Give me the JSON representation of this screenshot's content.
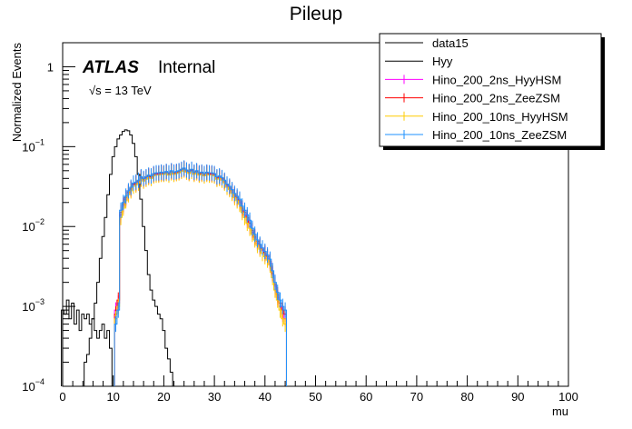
{
  "chart_data": {
    "type": "line",
    "title": "Pileup",
    "xlabel": "mu",
    "ylabel": "Normalized Events",
    "xlim": [
      0,
      100
    ],
    "ylim": [
      0.0001,
      2
    ],
    "y_scale": "log",
    "x_ticks": [
      "0",
      "10",
      "20",
      "30",
      "40",
      "50",
      "60",
      "70",
      "80",
      "90",
      "100"
    ],
    "y_ticks": [
      {
        "value": 1,
        "base": "1",
        "exp": ""
      },
      {
        "value": 0.1,
        "base": "10",
        "exp": "−1"
      },
      {
        "value": 0.01,
        "base": "10",
        "exp": "−2"
      },
      {
        "value": 0.001,
        "base": "10",
        "exp": "−3"
      },
      {
        "value": 0.0001,
        "base": "10",
        "exp": "−4"
      }
    ],
    "grid": false,
    "legend_position": "top-right",
    "atlas_label": "ATLAS",
    "atlas_status": "Internal",
    "energy_label": "√s = 13 TeV",
    "series": [
      {
        "name": "data15",
        "color": "#000000",
        "x": [
          4.5,
          5,
          5.5,
          6,
          6.5,
          7,
          7.5,
          8,
          8.5,
          9,
          9.5,
          10,
          10.5,
          11,
          11.5,
          12,
          12.5,
          13,
          13.5,
          14,
          14.5,
          15,
          15.5,
          16,
          16.5,
          17,
          17.5,
          18,
          18.5,
          19,
          19.5,
          20,
          20.5,
          21,
          21.5
        ],
        "y": [
          0.0002,
          0.00025,
          0.0004,
          0.0007,
          0.0011,
          0.002,
          0.004,
          0.0075,
          0.013,
          0.025,
          0.045,
          0.075,
          0.1,
          0.125,
          0.14,
          0.155,
          0.162,
          0.158,
          0.14,
          0.11,
          0.075,
          0.045,
          0.022,
          0.01,
          0.005,
          0.0025,
          0.0016,
          0.0012,
          0.001,
          0.0008,
          0.0007,
          0.0005,
          0.0003,
          0.00022,
          0.00015
        ]
      },
      {
        "name": "Hyy",
        "color": "#000000",
        "x": [
          0,
          0.5,
          1,
          1.5,
          2,
          2.5,
          3,
          3.5,
          4,
          4.5,
          5,
          5.5,
          6,
          6.5,
          7,
          7.5,
          8,
          8.5,
          9,
          9.5
        ],
        "y": [
          0.0009,
          0.0008,
          0.0012,
          0.0007,
          0.0011,
          0.0006,
          0.0009,
          0.0005,
          0.0008,
          0.0007,
          0.0008,
          0.0006,
          0.0007,
          0.0005,
          0.0004,
          0.0005,
          0.0006,
          0.0004,
          0.0005,
          0.0003
        ]
      },
      {
        "name": "Hino_200_2ns_HyyHSM",
        "color": "#ff00ff",
        "x": [
          10.5,
          11,
          11.5,
          12,
          12.5,
          13,
          13.5,
          14,
          14.5,
          15,
          15.5,
          16,
          16.5,
          17,
          17.5,
          18,
          18.5,
          19,
          19.5,
          20,
          20.5,
          21,
          21.5,
          22,
          22.5,
          23,
          23.5,
          24,
          24.5,
          25,
          25.5,
          26,
          26.5,
          27,
          27.5,
          28,
          28.5,
          29,
          29.5,
          30,
          30.5,
          31,
          31.5,
          32,
          32.5,
          33,
          33.5,
          34,
          34.5,
          35,
          35.5,
          36,
          36.5,
          37,
          37.5,
          38,
          38.5,
          39,
          39.5,
          40,
          40.5,
          41,
          41.5,
          42,
          42.5,
          43,
          43.5,
          44
        ],
        "y": [
          0.0009,
          0.0011,
          0.014,
          0.018,
          0.022,
          0.026,
          0.029,
          0.033,
          0.034,
          0.036,
          0.04,
          0.038,
          0.04,
          0.042,
          0.041,
          0.044,
          0.045,
          0.045,
          0.046,
          0.046,
          0.047,
          0.045,
          0.048,
          0.046,
          0.047,
          0.048,
          0.05,
          0.052,
          0.049,
          0.047,
          0.05,
          0.046,
          0.048,
          0.045,
          0.046,
          0.044,
          0.046,
          0.045,
          0.045,
          0.044,
          0.04,
          0.041,
          0.039,
          0.036,
          0.032,
          0.03,
          0.027,
          0.024,
          0.022,
          0.02,
          0.016,
          0.014,
          0.012,
          0.01,
          0.0085,
          0.0072,
          0.0062,
          0.0055,
          0.005,
          0.0045,
          0.004,
          0.0035,
          0.0025,
          0.0018,
          0.0013,
          0.001,
          0.0008,
          0.0007
        ]
      },
      {
        "name": "Hino_200_2ns_ZeeZSM",
        "color": "#ff0000",
        "x": [
          10.5,
          11,
          11.5,
          12,
          12.5,
          13,
          13.5,
          14,
          14.5,
          15,
          15.5,
          16,
          16.5,
          17,
          17.5,
          18,
          18.5,
          19,
          19.5,
          20,
          20.5,
          21,
          21.5,
          22,
          22.5,
          23,
          23.5,
          24,
          24.5,
          25,
          25.5,
          26,
          26.5,
          27,
          27.5,
          28,
          28.5,
          29,
          29.5,
          30,
          30.5,
          31,
          31.5,
          32,
          32.5,
          33,
          33.5,
          34,
          34.5,
          35,
          35.5,
          36,
          36.5,
          37,
          37.5,
          38,
          38.5,
          39,
          39.5,
          40,
          40.5,
          41,
          41.5,
          42,
          42.5,
          43,
          43.5,
          44
        ],
        "y": [
          0.0008,
          0.0012,
          0.015,
          0.019,
          0.023,
          0.027,
          0.03,
          0.034,
          0.035,
          0.037,
          0.041,
          0.039,
          0.041,
          0.043,
          0.042,
          0.045,
          0.046,
          0.046,
          0.047,
          0.046,
          0.048,
          0.046,
          0.049,
          0.047,
          0.048,
          0.049,
          0.051,
          0.053,
          0.05,
          0.048,
          0.051,
          0.047,
          0.049,
          0.046,
          0.047,
          0.045,
          0.047,
          0.046,
          0.046,
          0.045,
          0.041,
          0.042,
          0.04,
          0.037,
          0.033,
          0.031,
          0.028,
          0.025,
          0.023,
          0.021,
          0.017,
          0.015,
          0.013,
          0.011,
          0.009,
          0.0075,
          0.0065,
          0.0058,
          0.0052,
          0.0047,
          0.0042,
          0.0037,
          0.0026,
          0.0019,
          0.0014,
          0.0011,
          0.0009,
          0.0008
        ]
      },
      {
        "name": "Hino_200_10ns_HyyHSM",
        "color": "#ffcc00",
        "x": [
          10.5,
          11,
          11.5,
          12,
          12.5,
          13,
          13.5,
          14,
          14.5,
          15,
          15.5,
          16,
          16.5,
          17,
          17.5,
          18,
          18.5,
          19,
          19.5,
          20,
          20.5,
          21,
          21.5,
          22,
          22.5,
          23,
          23.5,
          24,
          24.5,
          25,
          25.5,
          26,
          26.5,
          27,
          27.5,
          28,
          28.5,
          29,
          29.5,
          30,
          30.5,
          31,
          31.5,
          32,
          32.5,
          33,
          33.5,
          34,
          34.5,
          35,
          35.5,
          36,
          36.5,
          37,
          37.5,
          38,
          38.5,
          39,
          39.5,
          40,
          40.5,
          41,
          41.5,
          42,
          42.5,
          43,
          43.5,
          44
        ],
        "y": [
          0.0007,
          0.001,
          0.013,
          0.017,
          0.021,
          0.025,
          0.028,
          0.032,
          0.033,
          0.035,
          0.039,
          0.037,
          0.039,
          0.041,
          0.04,
          0.043,
          0.044,
          0.044,
          0.045,
          0.045,
          0.046,
          0.044,
          0.047,
          0.045,
          0.046,
          0.047,
          0.049,
          0.051,
          0.048,
          0.046,
          0.049,
          0.045,
          0.047,
          0.044,
          0.045,
          0.043,
          0.045,
          0.044,
          0.044,
          0.043,
          0.039,
          0.04,
          0.038,
          0.035,
          0.031,
          0.029,
          0.026,
          0.023,
          0.021,
          0.019,
          0.015,
          0.013,
          0.011,
          0.0095,
          0.008,
          0.0068,
          0.0058,
          0.0052,
          0.0046,
          0.0042,
          0.0038,
          0.0033,
          0.0023,
          0.0016,
          0.0012,
          0.0009,
          0.0007,
          0.0006
        ]
      },
      {
        "name": "Hino_200_10ns_ZeeZSM",
        "color": "#1e90ff",
        "x": [
          10.5,
          11,
          11.5,
          12,
          12.5,
          13,
          13.5,
          14,
          14.5,
          15,
          15.5,
          16,
          16.5,
          17,
          17.5,
          18,
          18.5,
          19,
          19.5,
          20,
          20.5,
          21,
          21.5,
          22,
          22.5,
          23,
          23.5,
          24,
          24.5,
          25,
          25.5,
          26,
          26.5,
          27,
          27.5,
          28,
          28.5,
          29,
          29.5,
          30,
          30.5,
          31,
          31.5,
          32,
          32.5,
          33,
          33.5,
          34,
          34.5,
          35,
          35.5,
          36,
          36.5,
          37,
          37.5,
          38,
          38.5,
          39,
          39.5,
          40,
          40.5,
          41,
          41.5,
          42,
          42.5,
          43,
          43.5,
          44
        ],
        "y": [
          0.0006,
          0.0009,
          0.016,
          0.02,
          0.024,
          0.028,
          0.031,
          0.035,
          0.036,
          0.038,
          0.042,
          0.04,
          0.042,
          0.044,
          0.043,
          0.046,
          0.047,
          0.047,
          0.048,
          0.047,
          0.049,
          0.047,
          0.05,
          0.048,
          0.049,
          0.05,
          0.052,
          0.054,
          0.051,
          0.049,
          0.052,
          0.048,
          0.05,
          0.047,
          0.048,
          0.046,
          0.048,
          0.047,
          0.047,
          0.046,
          0.042,
          0.043,
          0.041,
          0.038,
          0.034,
          0.032,
          0.029,
          0.026,
          0.024,
          0.022,
          0.018,
          0.016,
          0.014,
          0.012,
          0.0095,
          0.008,
          0.0068,
          0.006,
          0.0054,
          0.0049,
          0.0044,
          0.0039,
          0.0028,
          0.002,
          0.0015,
          0.0012,
          0.001,
          0.0009
        ]
      }
    ]
  }
}
